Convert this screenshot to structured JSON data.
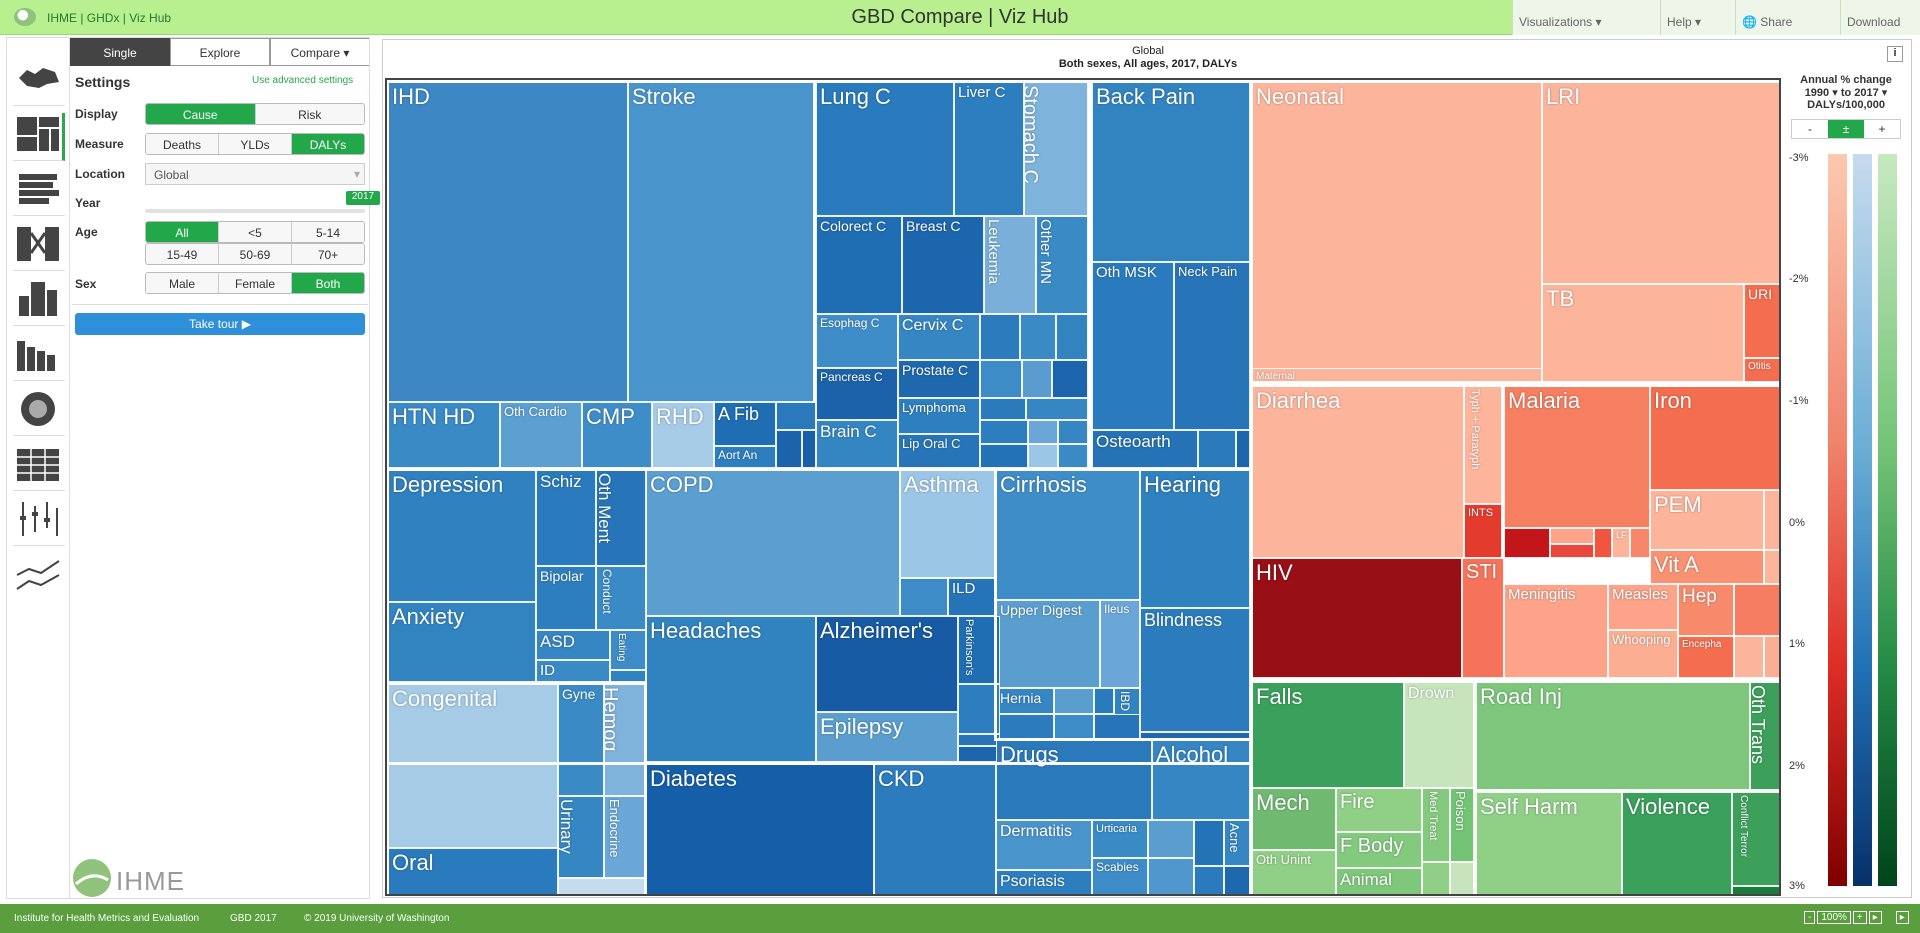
{
  "topbar": {
    "brand": "IHME | GHDx | Viz Hub",
    "title": "GBD Compare | Viz Hub",
    "menus": [
      "Visualizations",
      "Help",
      "Share",
      "Download"
    ]
  },
  "tabs": [
    "Single",
    "Explore",
    "Compare"
  ],
  "settings": {
    "title": "Settings",
    "advanced": "Use advanced settings",
    "display_label": "Display",
    "display": [
      "Cause",
      "Risk"
    ],
    "measure_label": "Measure",
    "measure": [
      "Deaths",
      "YLDs",
      "DALYs"
    ],
    "location_label": "Location",
    "location": "Global",
    "year_label": "Year",
    "year": "2017",
    "age_label": "Age",
    "age": [
      "All",
      "<5",
      "5-14",
      "15-49",
      "50-69",
      "70+"
    ],
    "sex_label": "Sex",
    "sex": [
      "Male",
      "Female",
      "Both"
    ],
    "tour": "Take tour ▶"
  },
  "logo": {
    "text": "IHME"
  },
  "viz": {
    "heading1": "Global",
    "heading2": "Both sexes, All ages, 2017, DALYs"
  },
  "legend": {
    "title1": "Annual % change",
    "from": "1990",
    "to": "to 2017",
    "unit": "DALYs/100,000",
    "buttons": [
      "-",
      "±",
      "+"
    ],
    "ticks": [
      "-3%",
      "-2%",
      "-1%",
      "0%",
      "1%",
      "2%",
      "3%"
    ]
  },
  "tiles": [
    "IHD",
    "Stroke",
    "Lung C",
    "Liver C",
    "Stomach C",
    "Colorect C",
    "Breast C",
    "Leukemia",
    "Other MN",
    "Esophag C",
    "Cervix C",
    "Pancreas C",
    "Prostate C",
    "Lymphoma",
    "Brain C",
    "Lip Oral C",
    "HTN HD",
    "Oth Cardio",
    "CMP",
    "RHD",
    "A Fib",
    "Aort An",
    "Back Pain",
    "Oth MSK",
    "Neck Pain",
    "Osteoarth",
    "Depression",
    "Schiz",
    "Oth Ment",
    "Bipolar",
    "Conduct",
    "Anxiety",
    "ASD",
    "ID",
    "Eating",
    "COPD",
    "Asthma",
    "ILD",
    "Cirrhosis",
    "Upper Digest",
    "Ileus",
    "Hernia",
    "IBD",
    "Hearing",
    "Blindness",
    "Headaches",
    "Alzheimer's",
    "Parkinson's",
    "Epilepsy",
    "Congenital",
    "Gyne",
    "Hemog",
    "Urinary",
    "Endocrine",
    "Oral",
    "Diabetes",
    "CKD",
    "Drugs",
    "Alcohol",
    "Dermatitis",
    "Urticaria",
    "Acne",
    "Scabies",
    "Psoriasis",
    "Neonatal",
    "Maternal",
    "LRI",
    "TB",
    "URI",
    "Otitis",
    "Diarrhea",
    "Typh + Paratyph",
    "INTS",
    "Malaria",
    "LF",
    "Iron",
    "PEM",
    "Vit A",
    "HIV",
    "STI",
    "Meningitis",
    "Measles",
    "Hep",
    "Whooping",
    "Encepha",
    "Falls",
    "Drown",
    "Mech",
    "Fire",
    "Med Treat",
    "Poison",
    "Oth Unint",
    "F Body",
    "Animal",
    "Road Inj",
    "Oth Trans",
    "Self Harm",
    "Violence",
    "Conflict Terror"
  ],
  "footer": {
    "left": "Institute for Health Metrics and Evaluation",
    "gbd": "GBD 2017",
    "copy": "© 2019 University of Washington",
    "zoom": "100%"
  },
  "colors": {
    "accent": "#22a84a",
    "topbar": "#b8f08f",
    "footer": "#5a9e3e"
  }
}
